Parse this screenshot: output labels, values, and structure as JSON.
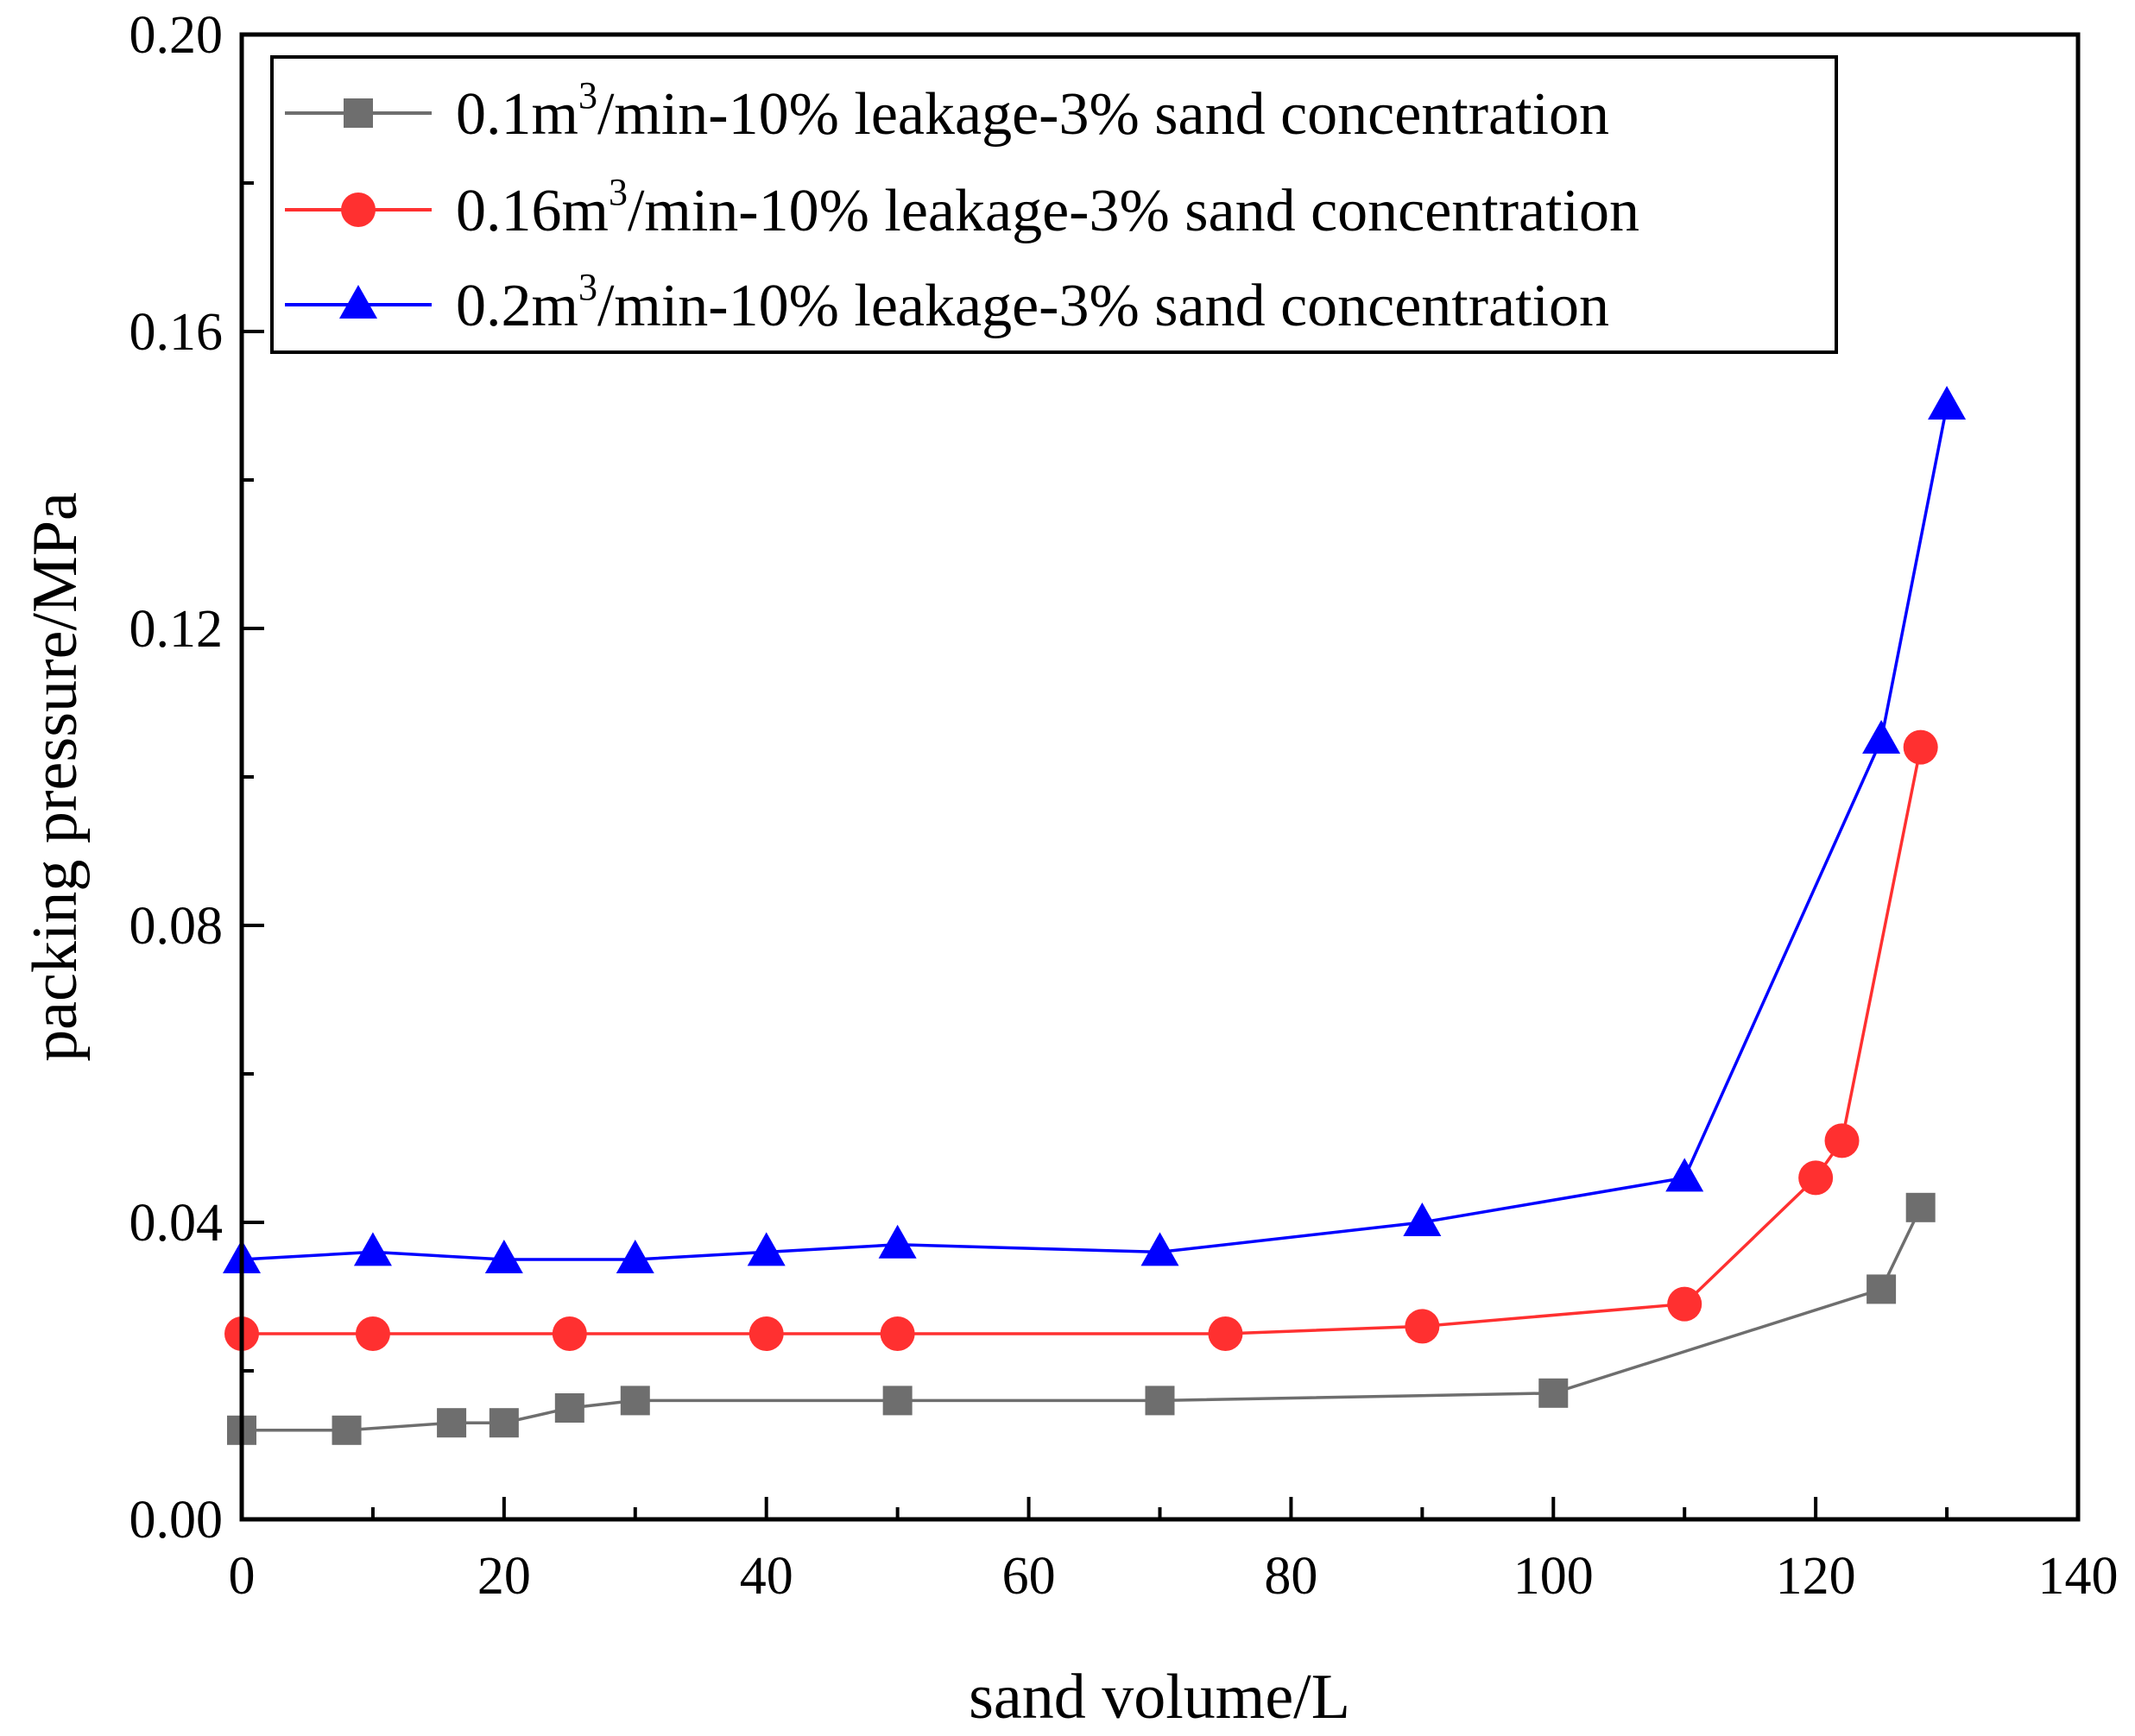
{
  "chart_data": {
    "type": "line",
    "xlabel": "sand volume/L",
    "ylabel": "packing pressure/MPa",
    "xlim": [
      0,
      140
    ],
    "ylim": [
      0,
      0.2
    ],
    "xticks": [
      "0",
      "20",
      "40",
      "60",
      "80",
      "100",
      "120",
      "140"
    ],
    "yticks": [
      "0.00",
      "0.04",
      "0.08",
      "0.12",
      "0.16",
      "0.20"
    ],
    "legend_position": "top-left",
    "series": [
      {
        "name_pre": "0.1m",
        "name_sup": "3",
        "name_post": "/min-10% leakage-3% sand concentration",
        "color": "#6e6e6e",
        "marker": "square",
        "x": [
          0,
          8,
          16,
          20,
          25,
          30,
          50,
          70,
          100,
          125,
          128
        ],
        "y": [
          0.012,
          0.012,
          0.013,
          0.013,
          0.015,
          0.016,
          0.016,
          0.016,
          0.017,
          0.031,
          0.042
        ]
      },
      {
        "name_pre": "0.16m",
        "name_sup": "3",
        "name_post": "/min-10% leakage-3% sand concentration",
        "color": "#ff3030",
        "marker": "circle",
        "x": [
          0,
          10,
          25,
          40,
          50,
          75,
          90,
          110,
          120,
          122,
          128
        ],
        "y": [
          0.025,
          0.025,
          0.025,
          0.025,
          0.025,
          0.025,
          0.026,
          0.029,
          0.046,
          0.051,
          0.104
        ]
      },
      {
        "name_pre": "0.2m",
        "name_sup": "3",
        "name_post": "/min-10% leakage-3% sand concentration",
        "color": "#0000ff",
        "marker": "triangle",
        "x": [
          0,
          10,
          20,
          30,
          40,
          50,
          70,
          90,
          110,
          125,
          130
        ],
        "y": [
          0.035,
          0.036,
          0.035,
          0.035,
          0.036,
          0.037,
          0.036,
          0.04,
          0.046,
          0.105,
          0.15
        ]
      }
    ]
  }
}
